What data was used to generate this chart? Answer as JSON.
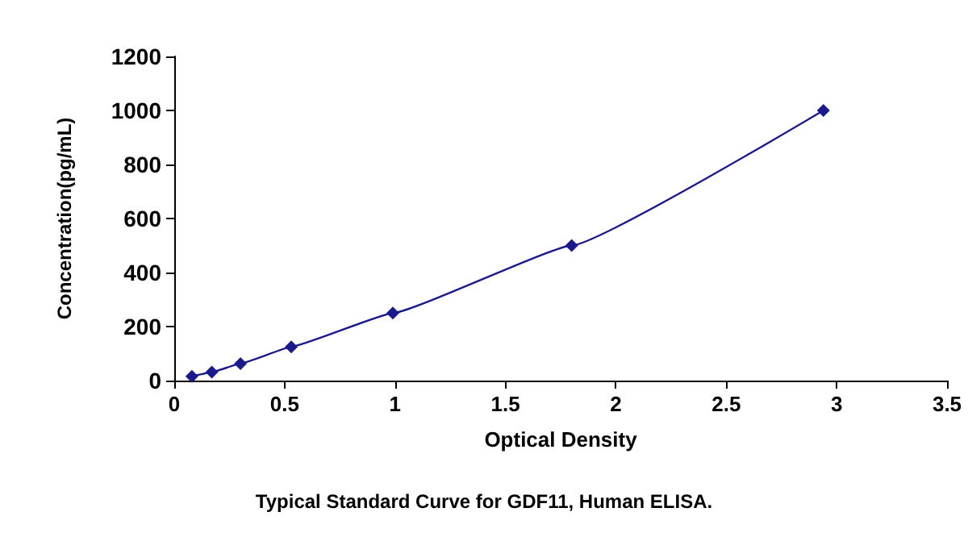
{
  "chart_data": {
    "type": "line",
    "xlabel": "Optical Density",
    "ylabel": "Concentration(pg/mL)",
    "annotations": [
      "Typical Standard Curve for GDF11, Human ELISA."
    ],
    "series": [
      {
        "color": "#1a1a8c",
        "x": [
          0.08,
          0.17,
          0.3,
          0.53,
          0.99,
          1.8,
          2.94
        ],
        "values": [
          16,
          31,
          63,
          125,
          250,
          500,
          1000
        ]
      }
    ],
    "xlim": [
      0,
      3.5
    ],
    "xticks": [
      0,
      0.5,
      1,
      1.5,
      2,
      2.5,
      3,
      3.5
    ],
    "ylim": [
      0,
      1200
    ],
    "yticks": [
      0,
      200,
      400,
      600,
      800,
      1000,
      1200
    ],
    "grid": false,
    "marker": "diamond",
    "line_style": "solid"
  }
}
